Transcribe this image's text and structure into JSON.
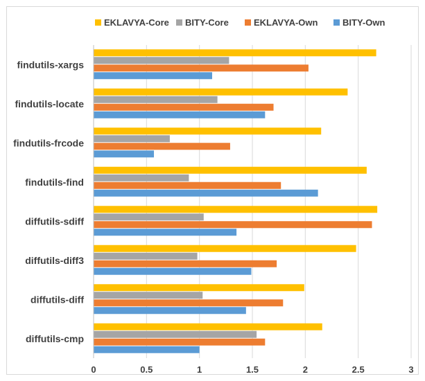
{
  "chart_data": {
    "type": "bar",
    "orientation": "horizontal",
    "categories": [
      "findutils-xargs",
      "findutils-locate",
      "findutils-frcode",
      "findutils-find",
      "diffutils-sdiff",
      "diffutils-diff3",
      "diffutils-diff",
      "diffutils-cmp"
    ],
    "series": [
      {
        "name": "EKLAVYA-Core",
        "color": "#ffc000",
        "values": [
          2.67,
          2.4,
          2.15,
          2.58,
          2.68,
          2.48,
          1.99,
          2.16
        ]
      },
      {
        "name": "BITY-Core",
        "color": "#a5a5a5",
        "values": [
          1.28,
          1.17,
          0.72,
          0.9,
          1.04,
          0.98,
          1.03,
          1.54
        ]
      },
      {
        "name": "EKLAVYA-Own",
        "color": "#ed7d31",
        "values": [
          2.03,
          1.7,
          1.29,
          1.77,
          2.63,
          1.73,
          1.79,
          1.62
        ]
      },
      {
        "name": "BITY-Own",
        "color": "#5b9bd5",
        "values": [
          1.12,
          1.62,
          0.57,
          2.12,
          1.35,
          1.49,
          1.44,
          1.0
        ]
      }
    ],
    "xlim": [
      0,
      3
    ],
    "xticks": [
      "0",
      "0.5",
      "1",
      "1.5",
      "2",
      "2.5",
      "3"
    ],
    "title": "",
    "xlabel": "",
    "ylabel": "",
    "grid": true,
    "legend": "top"
  }
}
